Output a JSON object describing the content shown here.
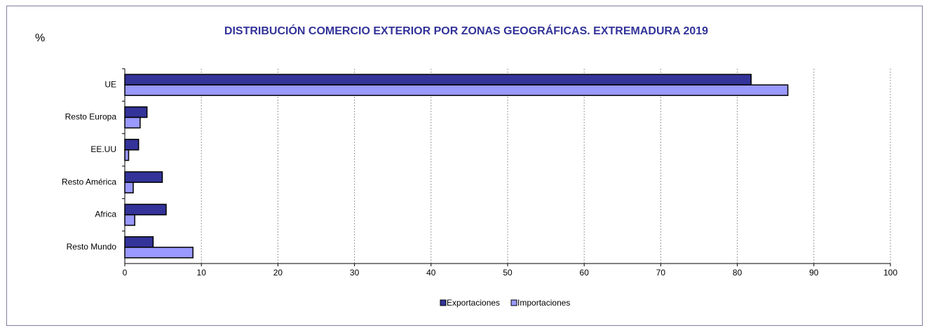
{
  "chart_data": {
    "type": "hbar",
    "title": "DISTRIBUCIÓN COMERCIO EXTERIOR POR ZONAS GEOGRÁFICAS. EXTREMADURA 2019",
    "y_label": "%",
    "categories": [
      "UE",
      "Resto Europa",
      "EE.UU",
      "Resto América",
      "Africa",
      "Resto Mundo"
    ],
    "series": [
      {
        "name": "Exportaciones",
        "color": "#333399",
        "values": [
          81.8,
          2.9,
          1.8,
          4.9,
          5.4,
          3.7
        ]
      },
      {
        "name": "Importaciones",
        "color": "#9999ff",
        "values": [
          86.6,
          2.0,
          0.5,
          1.1,
          1.3,
          8.9
        ]
      }
    ],
    "xlim": [
      0,
      100
    ],
    "xticks": [
      0,
      10,
      20,
      30,
      40,
      50,
      60,
      70,
      80,
      90,
      100
    ],
    "grid": true,
    "legend": "bottom"
  }
}
